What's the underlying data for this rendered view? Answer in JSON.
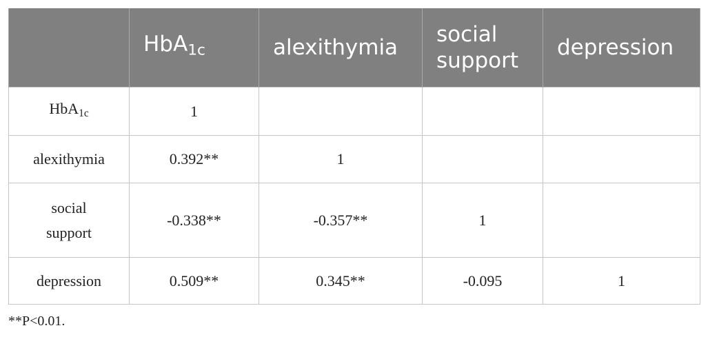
{
  "table": {
    "header": [
      null,
      {
        "text": "HbA",
        "sub": "1c"
      },
      "alexithymia",
      [
        "social",
        "support"
      ],
      "depression"
    ],
    "rows": [
      {
        "label": {
          "text": "HbA",
          "sub": "1c"
        },
        "cells": [
          1,
          null,
          null,
          null
        ]
      },
      {
        "label": "alexithymia",
        "cells": [
          "0.392**",
          1,
          null,
          null
        ]
      },
      {
        "label": [
          "social",
          "support"
        ],
        "cells": [
          "-0.338**",
          "-0.357**",
          1,
          null
        ]
      },
      {
        "label": "depression",
        "cells": [
          "0.509**",
          "0.345**",
          "-0.095",
          1
        ]
      }
    ],
    "footnote": "**P<0.01."
  }
}
